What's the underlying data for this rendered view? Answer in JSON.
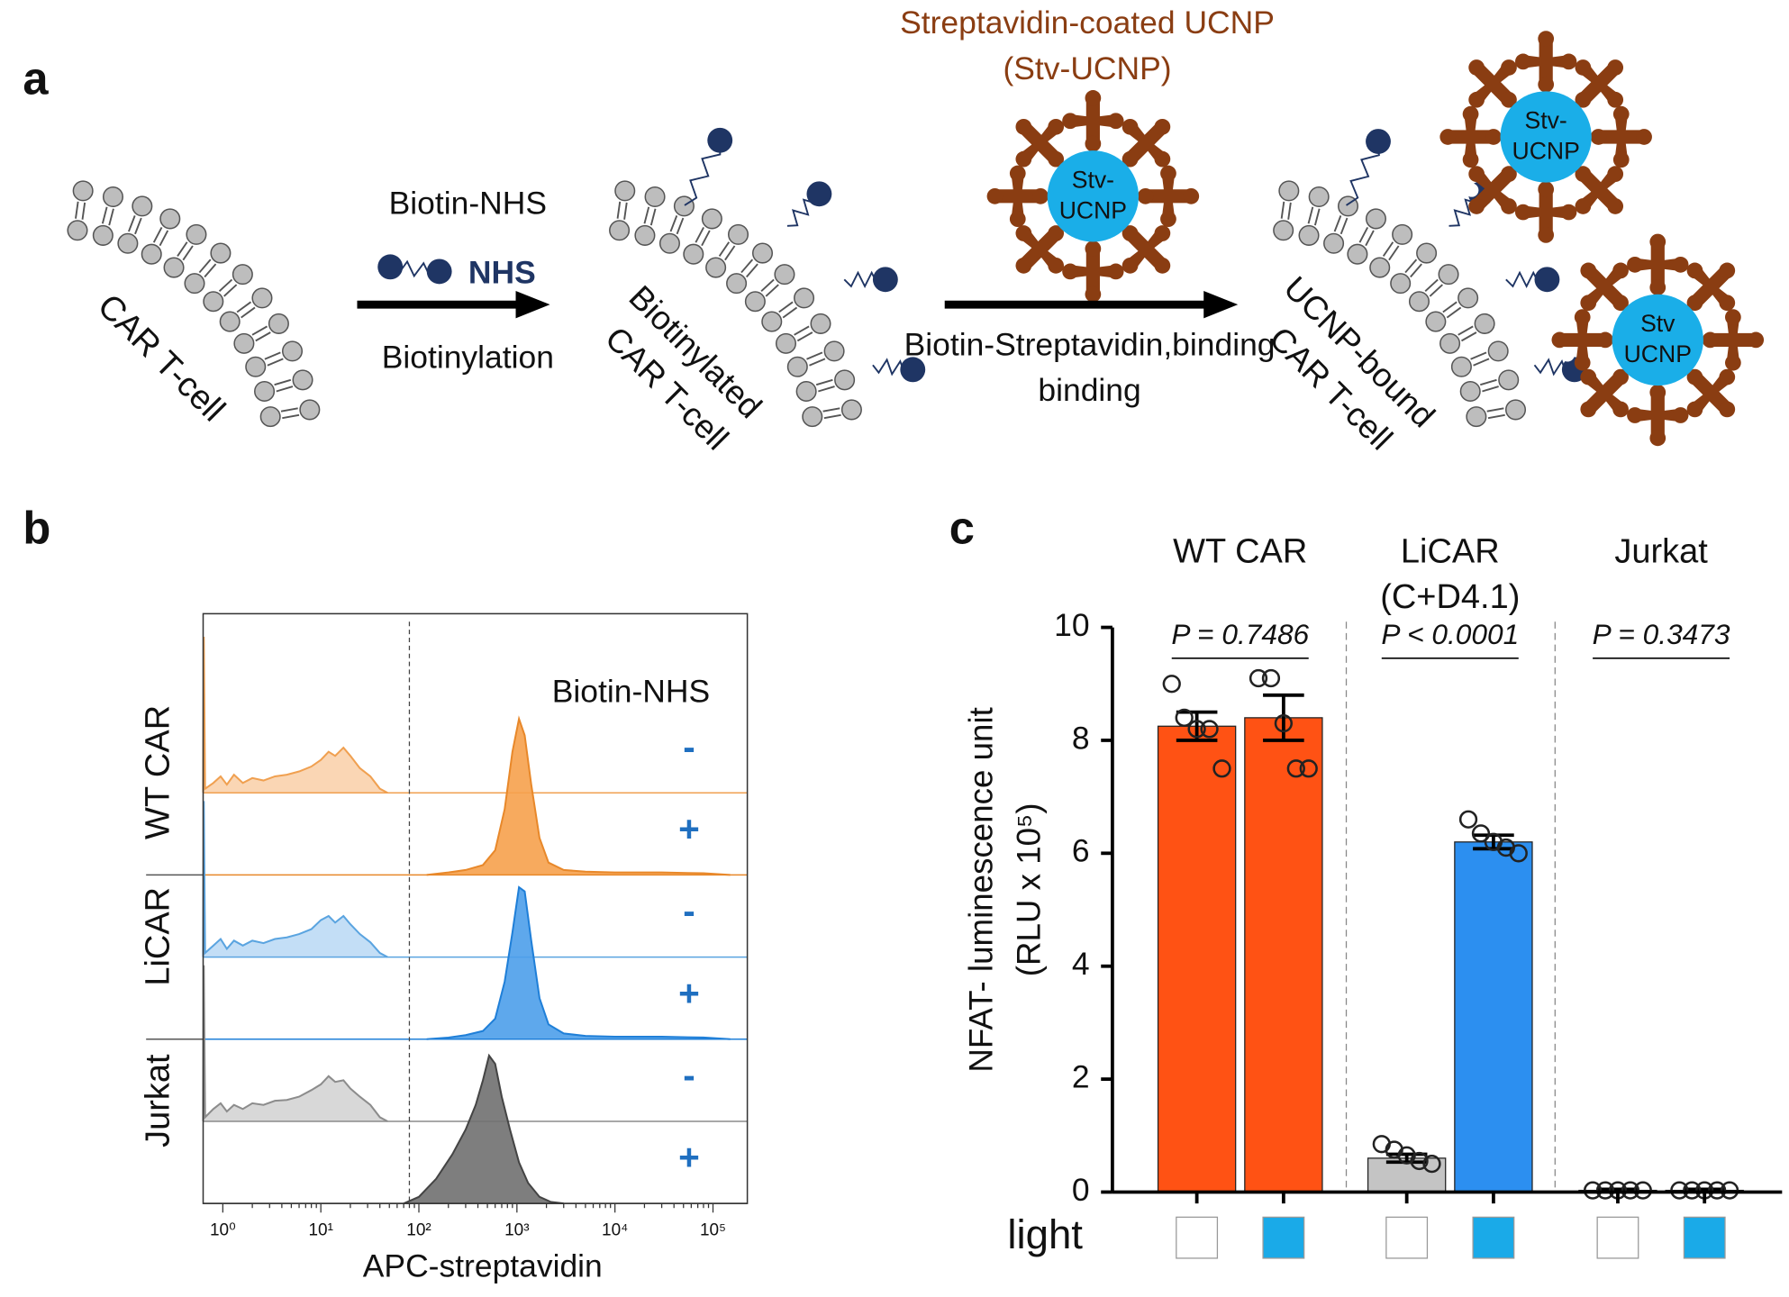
{
  "panels": {
    "a": {
      "label": "a",
      "cell": "CAR T-cell",
      "reagent": "Biotin-NHS",
      "reagent_group": "NHS",
      "step1": "Biotinylation",
      "cell2": [
        "Biotinylated",
        "CAR T-cell"
      ],
      "particle_title": [
        "Streptavidin-coated UCNP",
        "(Stv-UCNP)"
      ],
      "particle": [
        "Stv-",
        "UCNP"
      ],
      "step2": [
        "Biotin-Streptavidin",
        "binding"
      ],
      "cell3": [
        "UCNP-bound",
        "CAR T-cell"
      ],
      "particle2": [
        "Stv-",
        "UCNP"
      ],
      "particle3": [
        "Stv",
        "UCNP"
      ]
    },
    "b": {
      "label": "b"
    },
    "c": {
      "label": "c"
    }
  },
  "chart_data": [
    {
      "type": "density",
      "xlabel": "APC-streptavidin",
      "legend_title": "Biotin-NHS",
      "log_x": true,
      "xlim": [
        0.63,
        224000
      ],
      "xticks": [
        {
          "value": 1,
          "label": "10⁰"
        },
        {
          "value": 10,
          "label": "10¹"
        },
        {
          "value": 100,
          "label": "10²"
        },
        {
          "value": 1000,
          "label": "10³"
        },
        {
          "value": 10000,
          "label": "10⁴"
        },
        {
          "value": 100000,
          "label": "10⁵"
        }
      ],
      "gate": 80,
      "groups": [
        {
          "name": "WT CAR",
          "series": [
            {
              "name": "-",
              "color": "#f0a050",
              "fill": "#fad2ac",
              "x": [
                0.63,
                0.64,
                0.66,
                0.8,
                0.95,
                1.1,
                1.3,
                1.6,
                2,
                2.6,
                3.4,
                4.5,
                6,
                8,
                10,
                12,
                14,
                17,
                20,
                25,
                32,
                40,
                48
              ],
              "values": [
                0,
                1.9,
                0.05,
                0.12,
                0.2,
                0.1,
                0.22,
                0.12,
                0.18,
                0.15,
                0.2,
                0.22,
                0.26,
                0.32,
                0.4,
                0.5,
                0.45,
                0.55,
                0.45,
                0.3,
                0.2,
                0.05,
                0
              ]
            },
            {
              "name": "+",
              "color": "#e8882a",
              "fill": "#f6a14c",
              "x": [
                120,
                200,
                300,
                450,
                600,
                750,
                900,
                1050,
                1200,
                1400,
                1700,
                2100,
                3000,
                5000,
                10000,
                30000,
                80000,
                150000
              ],
              "values": [
                0,
                0.03,
                0.06,
                0.12,
                0.3,
                0.8,
                1.5,
                1.9,
                1.7,
                1.1,
                0.45,
                0.15,
                0.06,
                0.04,
                0.03,
                0.03,
                0.02,
                0
              ]
            }
          ]
        },
        {
          "name": "LiCAR",
          "series": [
            {
              "name": "-",
              "color": "#5aa4e0",
              "fill": "#bcdaf5",
              "x": [
                0.63,
                0.64,
                0.66,
                0.8,
                0.95,
                1.1,
                1.3,
                1.6,
                2,
                2.6,
                3.4,
                4.5,
                6,
                8,
                10,
                12,
                14,
                17,
                20,
                25,
                32,
                40,
                48
              ],
              "values": [
                0,
                1.9,
                0.05,
                0.14,
                0.22,
                0.1,
                0.2,
                0.14,
                0.2,
                0.17,
                0.22,
                0.24,
                0.28,
                0.34,
                0.45,
                0.5,
                0.42,
                0.5,
                0.4,
                0.28,
                0.18,
                0.05,
                0
              ]
            },
            {
              "name": "+",
              "color": "#1f7fd8",
              "fill": "#4c9fea",
              "x": [
                120,
                200,
                300,
                450,
                600,
                750,
                900,
                1050,
                1200,
                1400,
                1700,
                2100,
                3000,
                5000,
                10000,
                30000,
                80000,
                150000
              ],
              "values": [
                0,
                0.02,
                0.05,
                0.1,
                0.25,
                0.7,
                1.3,
                1.85,
                1.8,
                1.2,
                0.5,
                0.18,
                0.07,
                0.04,
                0.03,
                0.03,
                0.02,
                0
              ]
            }
          ]
        },
        {
          "name": "Jurkat",
          "series": [
            {
              "name": "-",
              "color": "#8c8c8c",
              "fill": "#d4d4d4",
              "x": [
                0.63,
                0.64,
                0.66,
                0.8,
                0.95,
                1.1,
                1.3,
                1.6,
                2,
                2.6,
                3.4,
                4.5,
                6,
                8,
                10,
                12,
                14,
                17,
                20,
                25,
                32,
                40,
                48
              ],
              "values": [
                0,
                1.9,
                0.05,
                0.15,
                0.22,
                0.12,
                0.2,
                0.15,
                0.22,
                0.2,
                0.25,
                0.26,
                0.3,
                0.38,
                0.45,
                0.55,
                0.48,
                0.5,
                0.4,
                0.3,
                0.2,
                0.05,
                0
              ]
            },
            {
              "name": "+",
              "color": "#444444",
              "fill": "#707070",
              "x": [
                70,
                100,
                150,
                220,
                300,
                380,
                450,
                520,
                600,
                700,
                850,
                1050,
                1300,
                1700,
                2200,
                3000
              ],
              "values": [
                0,
                0.08,
                0.3,
                0.6,
                0.9,
                1.2,
                1.5,
                1.8,
                1.7,
                1.3,
                0.9,
                0.5,
                0.25,
                0.08,
                0.02,
                0
              ]
            }
          ]
        }
      ]
    },
    {
      "type": "bar",
      "ylabel": [
        "NFAT- luminescence unit",
        "(RLU x 10⁵)"
      ],
      "ylim": [
        0,
        10
      ],
      "yticks": [
        0,
        2,
        4,
        6,
        8,
        10
      ],
      "categories": [
        [
          "WT CAR"
        ],
        [
          "LiCAR",
          "(C+D4.1)"
        ],
        [
          "Jurkat"
        ]
      ],
      "p_values": [
        "P = 0.7486",
        "P < 0.0001",
        "P = 0.3473"
      ],
      "light_label": "light",
      "series": [
        {
          "colors": [
            "#ff5214",
            "#c4c4c4",
            "#ff5214"
          ],
          "light_color": "#ffffff",
          "values": [
            8.25,
            0.6,
            0.03
          ],
          "errors": [
            0.25,
            0.07,
            0.02
          ],
          "points": [
            [
              9.0,
              8.4,
              8.2,
              8.2,
              7.5
            ],
            [
              0.85,
              0.75,
              0.65,
              0.55,
              0.5
            ],
            [
              0.03,
              0.03,
              0.03,
              0.03,
              0.03
            ]
          ]
        },
        {
          "colors": [
            "#ff5214",
            "#2c8ff0",
            "#2c8ff0"
          ],
          "light_color": "#1aaae8",
          "values": [
            8.4,
            6.2,
            0.03
          ],
          "errors": [
            0.4,
            0.12,
            0.02
          ],
          "points": [
            [
              9.1,
              9.1,
              8.3,
              7.5,
              7.5
            ],
            [
              6.6,
              6.35,
              6.2,
              6.1,
              6.0
            ],
            [
              0.03,
              0.03,
              0.03,
              0.03,
              0.03
            ]
          ]
        }
      ]
    }
  ]
}
